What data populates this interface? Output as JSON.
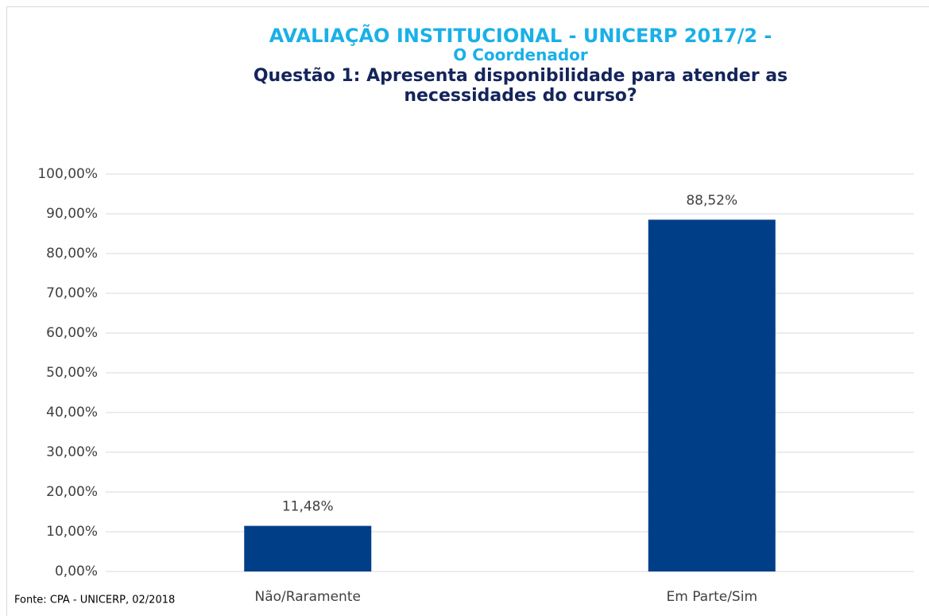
{
  "chart_data": {
    "type": "bar",
    "title": "AVALIAÇÃO INSTITUCIONAL - UNICERP 2017/2 -",
    "subtitle": "O Coordenador",
    "question": "Questão 1: Apresenta disponibilidade para atender as necessidades do curso?",
    "source": "Fonte: CPA - UNICERP, 02/2018",
    "categories": [
      "Não/Raramente",
      "Em Parte/Sim"
    ],
    "values": [
      11.48,
      88.52
    ],
    "value_labels": [
      "11,48%",
      "88,52%"
    ],
    "color": "#003f88",
    "ylim": [
      0,
      100
    ],
    "yticks": [
      {
        "value": 0,
        "label": "0,00%"
      },
      {
        "value": 10,
        "label": "10,00%"
      },
      {
        "value": 20,
        "label": "20,00%"
      },
      {
        "value": 30,
        "label": "30,00%"
      },
      {
        "value": 40,
        "label": "40,00%"
      },
      {
        "value": 50,
        "label": "50,00%"
      },
      {
        "value": 60,
        "label": "60,00%"
      },
      {
        "value": 70,
        "label": "70,00%"
      },
      {
        "value": 80,
        "label": "80,00%"
      },
      {
        "value": 90,
        "label": "90,00%"
      },
      {
        "value": 100,
        "label": "100,00%"
      }
    ],
    "grid": true
  }
}
